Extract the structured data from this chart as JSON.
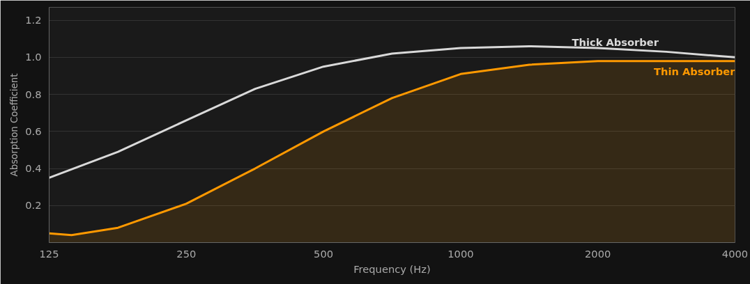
{
  "chart_data": {
    "type": "line",
    "xlabel": "Frequency (Hz)",
    "ylabel": "Absorption Coefficient",
    "log": "x",
    "xlim": [
      125,
      4000
    ],
    "xticks": [
      125,
      250,
      500,
      1000,
      2000,
      4000
    ],
    "ylim": [
      0,
      1.27
    ],
    "yticks": [
      0.2,
      0.4,
      0.6,
      0.8,
      {
        "value": 1,
        "label": "1.0"
      },
      1.2
    ],
    "grid": "y",
    "series": [
      {
        "name": "Thick Absorber",
        "color": "#d9d9d9",
        "x": [
          125,
          177,
          250,
          354,
          500,
          707,
          1000,
          1414,
          2000,
          2828,
          4000
        ],
        "values": [
          0.35,
          0.49,
          0.66,
          0.83,
          0.95,
          1.02,
          1.05,
          1.06,
          1.05,
          1.03,
          1.0
        ]
      },
      {
        "name": "Thin Absorber",
        "type": "area",
        "color": "#ff9900",
        "x": [
          125,
          140,
          177,
          250,
          354,
          500,
          707,
          1000,
          1414,
          2000,
          2828,
          4000
        ],
        "values": [
          0.05,
          0.04,
          0.08,
          0.21,
          0.4,
          0.6,
          0.78,
          0.91,
          0.96,
          0.98,
          0.98,
          0.98
        ]
      }
    ]
  }
}
